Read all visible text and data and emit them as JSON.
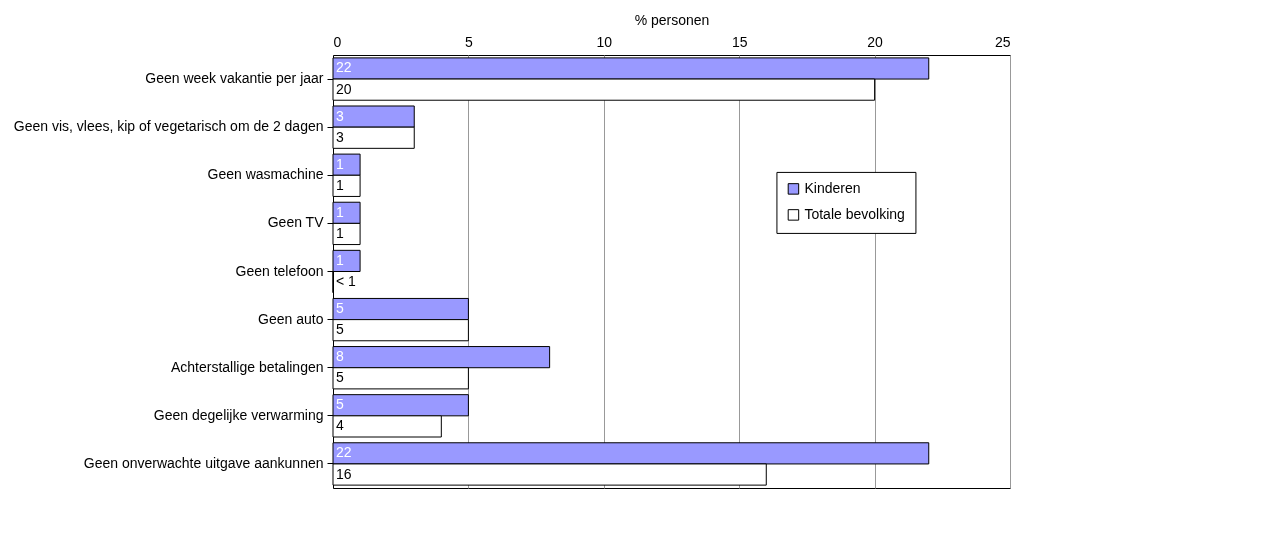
{
  "chart_data": {
    "type": "bar",
    "orientation": "horizontal",
    "xlabel": "% personen",
    "categories": [
      "Geen week vakantie per jaar",
      "Geen vis, vlees, kip of vegetarisch om de 2 dagen",
      "Geen wasmachine",
      "Geen TV",
      "Geen telefoon",
      "Geen auto",
      "Achterstallige betalingen",
      "Geen degelijke verwarming",
      "Geen onverwachte uitgave aankunnen"
    ],
    "series": [
      {
        "name": "Kinderen",
        "color": "#9999ff",
        "values": [
          22,
          3,
          1,
          1,
          1,
          5,
          8,
          5,
          22
        ],
        "value_labels": [
          "22",
          "3",
          "1",
          "1",
          "1",
          "5",
          "8",
          "5",
          "22"
        ]
      },
      {
        "name": "Totale bevolking",
        "color": "#ffffff",
        "values": [
          20,
          3,
          1,
          1,
          0,
          5,
          5,
          4,
          16
        ],
        "value_labels": [
          "20",
          "3",
          "1",
          "1",
          "< 1",
          "5",
          "5",
          "4",
          "16"
        ]
      }
    ],
    "xlim": [
      0,
      25
    ],
    "xticks": [
      0,
      5,
      10,
      15,
      20,
      25
    ],
    "grid": "x",
    "legend": "right"
  }
}
